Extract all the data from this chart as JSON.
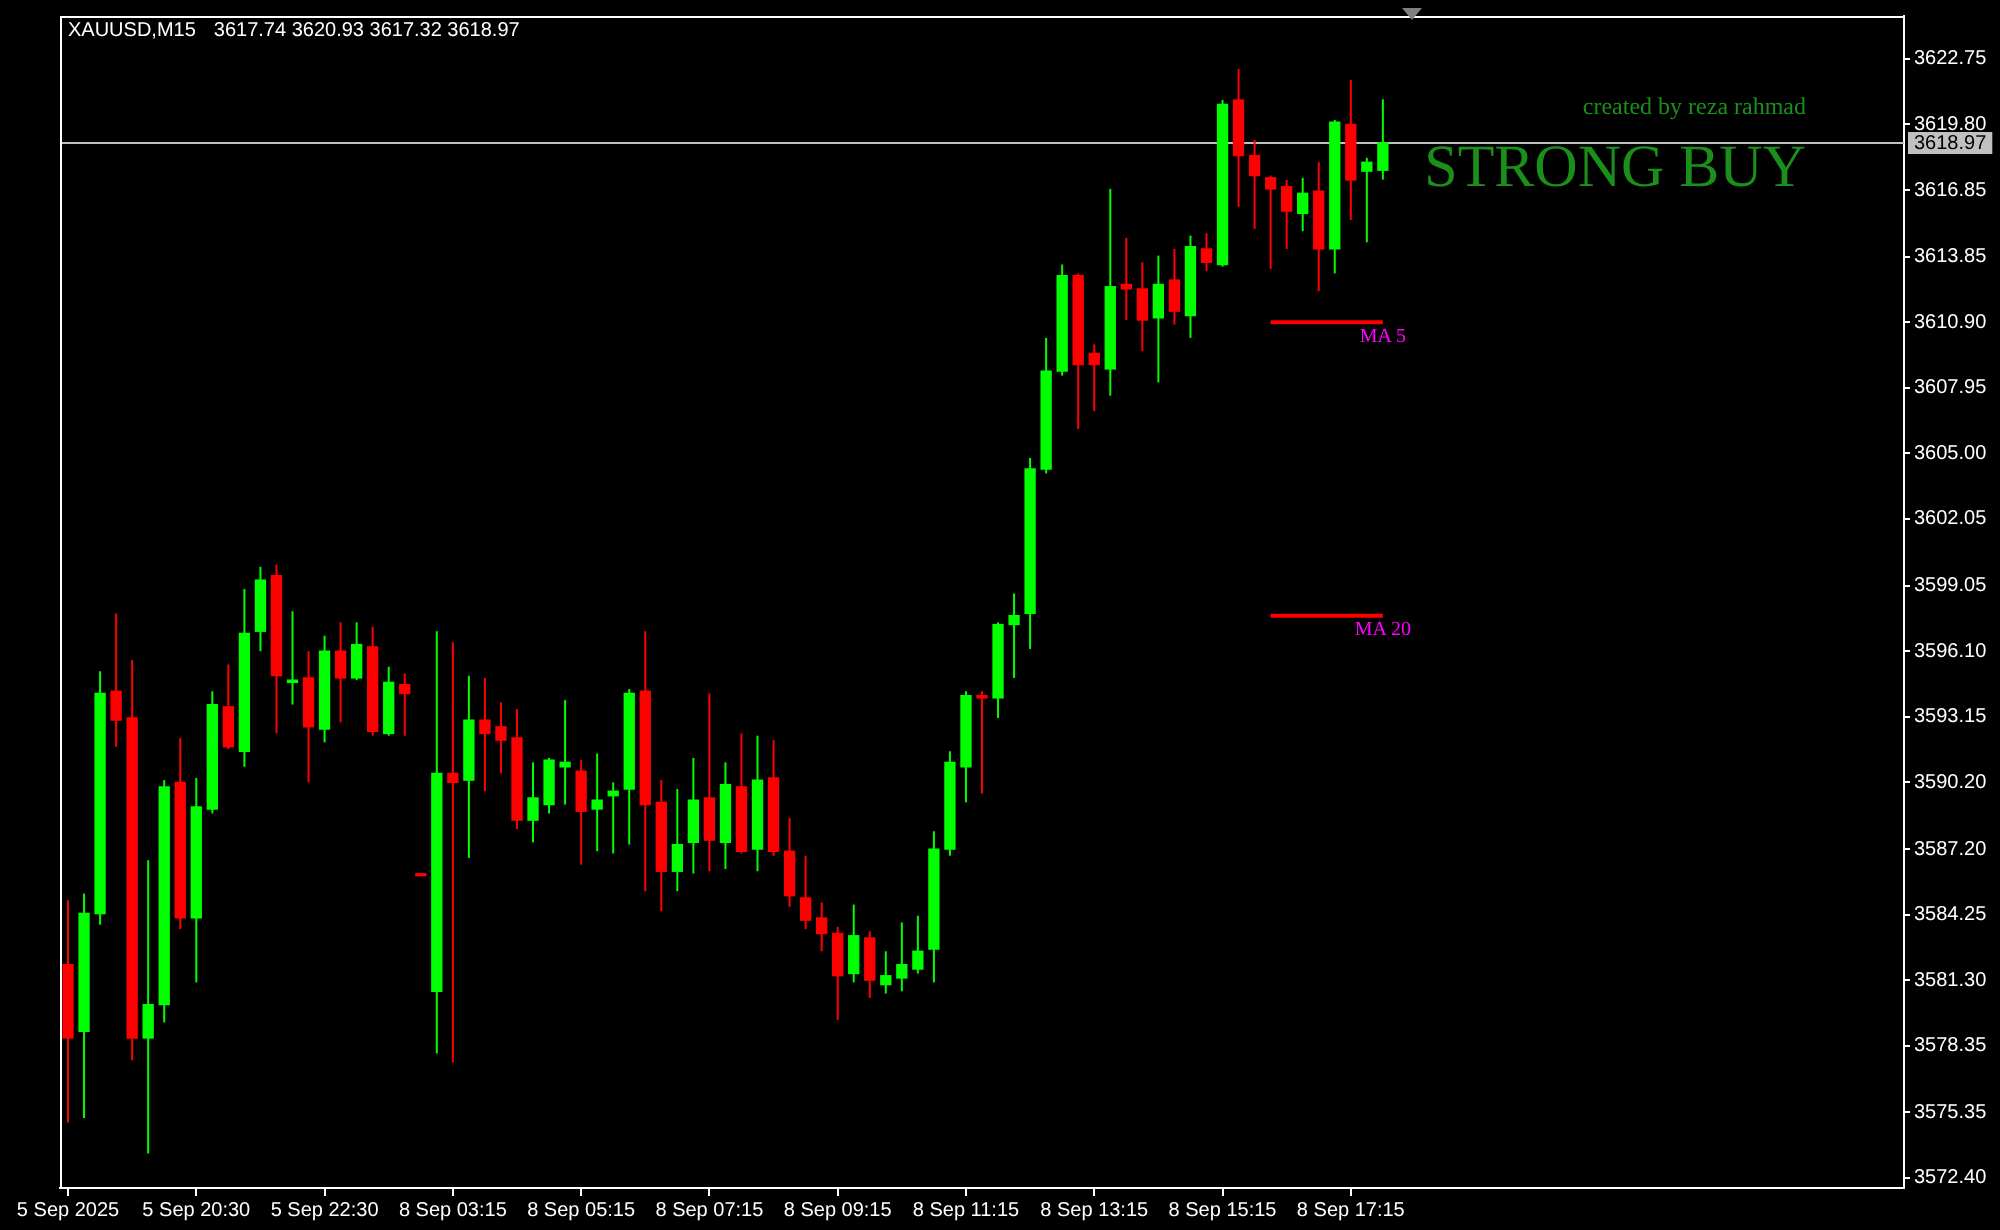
{
  "chart_data": {
    "type": "candlestick",
    "title": "XAUUSD,M15",
    "subtitle": "3617.74 3620.93 3617.32 3618.97",
    "categories": [
      "5 Sep 2025",
      null,
      null,
      null,
      null,
      null,
      null,
      null,
      "5 Sep 20:30",
      null,
      null,
      null,
      null,
      null,
      null,
      null,
      "5 Sep 22:30",
      null,
      null,
      null,
      null,
      null,
      null,
      null,
      "8 Sep 03:15",
      null,
      null,
      null,
      null,
      null,
      null,
      null,
      "8 Sep 05:15",
      null,
      null,
      null,
      null,
      null,
      null,
      null,
      "8 Sep 07:15",
      null,
      null,
      null,
      null,
      null,
      null,
      null,
      "8 Sep 09:15",
      null,
      null,
      null,
      null,
      null,
      null,
      null,
      "8 Sep 11:15",
      null,
      null,
      null,
      null,
      null,
      null,
      null,
      "8 Sep 13:15",
      null,
      null,
      null,
      null,
      null,
      null,
      null,
      "8 Sep 15:15",
      null,
      null,
      null,
      null,
      null,
      null,
      null,
      "8 Sep 17:15",
      null,
      null,
      null,
      null,
      null,
      null,
      null,
      null,
      null,
      null,
      null,
      null,
      null,
      null,
      null,
      null,
      null,
      null,
      null,
      null,
      null,
      null,
      null,
      null,
      null,
      null,
      null,
      null,
      null,
      null,
      null,
      null,
      null,
      null
    ],
    "ohlc": [
      [
        3582.0,
        3584.9,
        3574.9,
        3578.7
      ],
      [
        3579.0,
        3585.2,
        3575.1,
        3584.3
      ],
      [
        3584.3,
        3595.2,
        3583.8,
        3594.2
      ],
      [
        3594.3,
        3597.8,
        3591.8,
        3593.0
      ],
      [
        3593.1,
        3595.7,
        3577.7,
        3578.7
      ],
      [
        3578.7,
        3586.7,
        3573.5,
        3580.2
      ],
      [
        3580.2,
        3590.3,
        3579.4,
        3590.0
      ],
      [
        3590.2,
        3592.2,
        3583.6,
        3584.1
      ],
      [
        3584.1,
        3590.4,
        3581.2,
        3589.1
      ],
      [
        3589.0,
        3594.3,
        3588.8,
        3593.7
      ],
      [
        3593.6,
        3595.5,
        3591.7,
        3591.8
      ],
      [
        3591.6,
        3598.9,
        3590.9,
        3596.9
      ],
      [
        3597.0,
        3599.9,
        3596.1,
        3599.3
      ],
      [
        3599.5,
        3600.0,
        3592.4,
        3595.0
      ],
      [
        3594.7,
        3597.9,
        3593.7,
        3594.8
      ],
      [
        3594.9,
        3596.1,
        3590.2,
        3592.7
      ],
      [
        3592.6,
        3596.8,
        3592.0,
        3596.1
      ],
      [
        3596.1,
        3597.4,
        3592.9,
        3594.9
      ],
      [
        3594.9,
        3597.4,
        3594.8,
        3596.4
      ],
      [
        3596.3,
        3597.2,
        3592.3,
        3592.5
      ],
      [
        3592.4,
        3595.4,
        3592.3,
        3594.7
      ],
      [
        3594.6,
        3595.1,
        3592.3,
        3594.2
      ],
      [
        3586.0,
        3586.0,
        3586.0,
        3586.0
      ],
      [
        3580.8,
        3597.0,
        3578.0,
        3590.6
      ],
      [
        3590.6,
        3596.5,
        3577.6,
        3590.2
      ],
      [
        3590.3,
        3595.0,
        3586.8,
        3593.0
      ],
      [
        3593.0,
        3594.9,
        3589.8,
        3592.4
      ],
      [
        3592.7,
        3593.8,
        3590.6,
        3592.1
      ],
      [
        3592.2,
        3593.5,
        3588.1,
        3588.5
      ],
      [
        3588.5,
        3591.1,
        3587.5,
        3589.5
      ],
      [
        3589.2,
        3591.3,
        3588.8,
        3591.2
      ],
      [
        3590.9,
        3593.9,
        3589.2,
        3591.1
      ],
      [
        3590.7,
        3591.2,
        3586.5,
        3588.9
      ],
      [
        3589.0,
        3591.5,
        3587.1,
        3589.4
      ],
      [
        3589.6,
        3590.2,
        3587.0,
        3589.8
      ],
      [
        3589.9,
        3594.4,
        3587.4,
        3594.2
      ],
      [
        3594.3,
        3597.0,
        3585.3,
        3589.2
      ],
      [
        3589.3,
        3590.3,
        3584.4,
        3586.2
      ],
      [
        3586.2,
        3589.9,
        3585.3,
        3587.4
      ],
      [
        3587.5,
        3591.3,
        3586.1,
        3589.4
      ],
      [
        3589.5,
        3594.2,
        3586.2,
        3587.6
      ],
      [
        3587.5,
        3591.1,
        3586.3,
        3590.1
      ],
      [
        3590.0,
        3592.4,
        3587.0,
        3587.1
      ],
      [
        3587.2,
        3592.3,
        3586.2,
        3590.3
      ],
      [
        3590.4,
        3592.1,
        3586.9,
        3587.1
      ],
      [
        3587.1,
        3588.6,
        3584.6,
        3585.1
      ],
      [
        3585.0,
        3586.9,
        3583.6,
        3584.0
      ],
      [
        3584.1,
        3584.8,
        3582.6,
        3583.4
      ],
      [
        3583.4,
        3583.7,
        3579.5,
        3581.5
      ],
      [
        3581.6,
        3584.7,
        3581.2,
        3583.3
      ],
      [
        3583.2,
        3583.5,
        3580.5,
        3581.3
      ],
      [
        3581.1,
        3582.6,
        3580.7,
        3581.5
      ],
      [
        3581.4,
        3583.9,
        3580.8,
        3582.0
      ],
      [
        3581.8,
        3584.2,
        3581.6,
        3582.6
      ],
      [
        3582.7,
        3588.0,
        3581.2,
        3587.2
      ],
      [
        3587.2,
        3591.6,
        3586.9,
        3591.1
      ],
      [
        3590.9,
        3594.3,
        3589.3,
        3594.1
      ],
      [
        3594.1,
        3594.3,
        3589.7,
        3594.0
      ],
      [
        3594.0,
        3597.4,
        3593.1,
        3597.3
      ],
      [
        3597.3,
        3598.7,
        3594.9,
        3597.7
      ],
      [
        3597.8,
        3604.8,
        3596.2,
        3604.3
      ],
      [
        3604.3,
        3610.2,
        3604.1,
        3608.7
      ],
      [
        3608.7,
        3613.5,
        3608.5,
        3613.0
      ],
      [
        3613.0,
        3613.1,
        3606.1,
        3609.0
      ],
      [
        3609.5,
        3609.9,
        3606.9,
        3609.0
      ],
      [
        3608.8,
        3616.9,
        3607.6,
        3612.5
      ],
      [
        3612.6,
        3614.7,
        3611.0,
        3612.4
      ],
      [
        3612.4,
        3613.6,
        3609.6,
        3611.0
      ],
      [
        3611.1,
        3613.9,
        3608.2,
        3612.6
      ],
      [
        3612.8,
        3614.2,
        3610.8,
        3611.4
      ],
      [
        3611.2,
        3614.8,
        3610.2,
        3614.3
      ],
      [
        3614.2,
        3614.9,
        3613.2,
        3613.6
      ],
      [
        3613.5,
        3620.9,
        3613.4,
        3620.7
      ],
      [
        3620.9,
        3622.3,
        3616.1,
        3618.4
      ],
      [
        3618.4,
        3619.1,
        3615.1,
        3617.5
      ],
      [
        3617.4,
        3617.5,
        3613.3,
        3616.9
      ],
      [
        3617.0,
        3617.3,
        3614.2,
        3615.9
      ],
      [
        3615.8,
        3617.4,
        3615.0,
        3616.7
      ],
      [
        3616.8,
        3618.1,
        3612.3,
        3614.2
      ],
      [
        3614.2,
        3620.0,
        3613.1,
        3619.9
      ],
      [
        3619.8,
        3621.8,
        3615.5,
        3617.3
      ],
      [
        3617.7,
        3618.3,
        3614.5,
        3618.1
      ],
      [
        3617.74,
        3620.93,
        3617.32,
        3618.97
      ],
      null,
      null,
      null,
      null,
      null,
      null,
      null,
      null,
      null,
      null,
      null,
      null,
      null,
      null,
      null,
      null,
      null,
      null,
      null,
      null,
      null,
      null,
      null,
      null,
      null,
      null,
      null,
      null,
      null,
      null,
      null,
      null
    ],
    "colors": [
      "#ff0000",
      "#00ff00",
      "#00ff00",
      "#ff0000",
      "#ff0000",
      "#00ff00",
      "#00ff00",
      "#ff0000",
      "#00ff00",
      "#00ff00",
      "#ff0000",
      "#00ff00",
      "#00ff00",
      "#ff0000",
      "#00ff00",
      "#ff0000",
      "#00ff00",
      "#ff0000",
      "#00ff00",
      "#ff0000",
      "#00ff00",
      "#ff0000",
      "#ff0000",
      "#00ff00",
      "#ff0000",
      "#00ff00",
      "#ff0000",
      "#ff0000",
      "#ff0000",
      "#00ff00",
      "#00ff00",
      "#00ff00",
      "#ff0000",
      "#00ff00",
      "#00ff00",
      "#00ff00",
      "#ff0000",
      "#ff0000",
      "#00ff00",
      "#00ff00",
      "#ff0000",
      "#00ff00",
      "#ff0000",
      "#00ff00",
      "#ff0000",
      "#ff0000",
      "#ff0000",
      "#ff0000",
      "#ff0000",
      "#00ff00",
      "#ff0000",
      "#00ff00",
      "#00ff00",
      "#00ff00",
      "#00ff00",
      "#00ff00",
      "#00ff00",
      "#ff0000",
      "#00ff00",
      "#00ff00",
      "#00ff00",
      "#00ff00",
      "#00ff00",
      "#ff0000",
      "#ff0000",
      "#00ff00",
      "#ff0000",
      "#ff0000",
      "#00ff00",
      "#ff0000",
      "#00ff00",
      "#ff0000",
      "#00ff00",
      "#ff0000",
      "#ff0000",
      "#ff0000",
      "#ff0000",
      "#00ff00",
      "#ff0000",
      "#00ff00",
      "#ff0000",
      "#00ff00",
      "#00ff00",
      null,
      null,
      null,
      null,
      null,
      null,
      null,
      null,
      null,
      null,
      null,
      null,
      null,
      null,
      null,
      null,
      null,
      null,
      null,
      null,
      null,
      null,
      null,
      null,
      null,
      null,
      null,
      null,
      null,
      null,
      null,
      null
    ],
    "series": [
      {
        "type": "line",
        "name": "MA 5",
        "color": "#ff0000",
        "values": [
          null,
          null,
          null,
          null,
          null,
          null,
          null,
          null,
          null,
          null,
          null,
          null,
          null,
          null,
          null,
          null,
          null,
          null,
          null,
          null,
          null,
          null,
          null,
          null,
          null,
          null,
          null,
          null,
          null,
          null,
          null,
          null,
          null,
          null,
          null,
          null,
          null,
          null,
          null,
          null,
          null,
          null,
          null,
          null,
          null,
          null,
          null,
          null,
          null,
          null,
          null,
          null,
          null,
          null,
          null,
          null,
          null,
          null,
          null,
          null,
          null,
          null,
          null,
          null,
          null,
          null,
          null,
          null,
          null,
          null,
          null,
          null,
          null,
          null,
          null,
          3610.9,
          3610.9,
          3610.9,
          3610.9,
          3610.9,
          3610.9,
          3610.9,
          3610.9,
          null,
          null,
          null,
          null,
          null,
          null,
          null,
          null,
          null,
          null,
          null,
          null,
          null,
          null,
          null,
          null,
          null,
          null,
          null,
          null,
          null,
          null,
          null,
          null,
          null,
          null,
          null,
          null,
          null,
          null,
          null,
          null
        ]
      },
      {
        "type": "line",
        "name": "MA 20",
        "color": "#ff0000",
        "values": [
          null,
          null,
          null,
          null,
          null,
          null,
          null,
          null,
          null,
          null,
          null,
          null,
          null,
          null,
          null,
          null,
          null,
          null,
          null,
          null,
          null,
          null,
          null,
          null,
          null,
          null,
          null,
          null,
          null,
          null,
          null,
          null,
          null,
          null,
          null,
          null,
          null,
          null,
          null,
          null,
          null,
          null,
          null,
          null,
          null,
          null,
          null,
          null,
          null,
          null,
          null,
          null,
          null,
          null,
          null,
          null,
          null,
          null,
          null,
          null,
          null,
          null,
          null,
          null,
          null,
          null,
          null,
          null,
          null,
          null,
          null,
          null,
          null,
          null,
          null,
          3597.7,
          3597.7,
          3597.7,
          3597.7,
          3597.7,
          3597.7,
          3597.7,
          3597.7,
          null,
          null,
          null,
          null,
          null,
          null,
          null,
          null,
          null,
          null,
          null,
          null,
          null,
          null,
          null,
          null,
          null,
          null,
          null,
          null,
          null,
          null,
          null,
          null,
          null,
          null,
          null,
          null,
          null,
          null,
          null,
          null
        ]
      }
    ],
    "ylim": [
      3571.95,
      3624.68
    ],
    "yticks": [
      {
        "value": 3572.4,
        "label": "3572.40"
      },
      {
        "value": 3575.35,
        "label": "3575.35"
      },
      {
        "value": 3578.35,
        "label": "3578.35"
      },
      {
        "value": 3581.3,
        "label": "3581.30"
      },
      {
        "value": 3584.25,
        "label": "3584.25"
      },
      {
        "value": 3587.2,
        "label": "3587.20"
      },
      {
        "value": 3590.2,
        "label": "3590.20"
      },
      {
        "value": 3593.15,
        "label": "3593.15"
      },
      {
        "value": 3596.1,
        "label": "3596.10"
      },
      {
        "value": 3599.05,
        "label": "3599.05"
      },
      {
        "value": 3602.05,
        "label": "3602.05"
      },
      {
        "value": 3605,
        "label": "3605.00"
      },
      {
        "value": 3607.95,
        "label": "3607.95"
      },
      {
        "value": 3610.9,
        "label": "3610.90"
      },
      {
        "value": 3613.85,
        "label": "3613.85"
      },
      {
        "value": 3616.85,
        "label": "3616.85"
      },
      {
        "value": 3619.8,
        "label": "3619.80"
      },
      {
        "value": 3622.75,
        "label": "3622.75"
      }
    ],
    "ref_lines": [
      {
        "axis": "y",
        "value": 3618.97,
        "label": "3618.97",
        "color": "#c0c0c0"
      }
    ],
    "annotations": [
      "created by reza rahmad",
      "STRONG BUY"
    ]
  }
}
